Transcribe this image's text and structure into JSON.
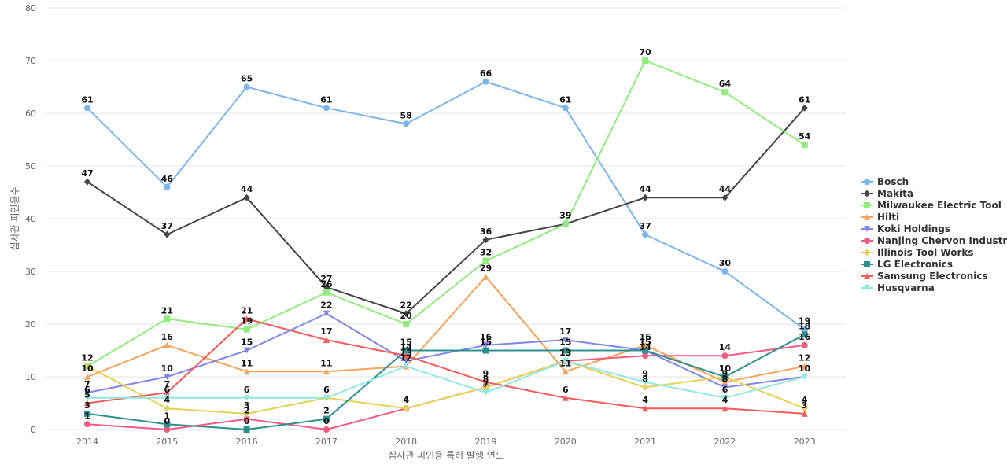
{
  "chart_data": {
    "type": "line",
    "title": "",
    "xlabel": "심사관 피인용 특허 발행 연도",
    "ylabel": "심사관 피인용수",
    "ylim": [
      0,
      80
    ],
    "yticks": [
      0,
      10,
      20,
      30,
      40,
      50,
      60,
      70,
      80
    ],
    "grid": true,
    "legend_position": "right",
    "categories": [
      "2014",
      "2015",
      "2016",
      "2017",
      "2018",
      "2019",
      "2020",
      "2021",
      "2022",
      "2023"
    ],
    "series": [
      {
        "name": "Bosch",
        "color": "#7cb5ec",
        "marker": "circle",
        "values": [
          61,
          46,
          65,
          61,
          58,
          66,
          61,
          37,
          30,
          19
        ]
      },
      {
        "name": "Makita",
        "color": "#434348",
        "marker": "diamond",
        "values": [
          47,
          37,
          44,
          27,
          22,
          36,
          39,
          44,
          44,
          61
        ]
      },
      {
        "name": "Milwaukee Electric Tool",
        "color": "#90ed7d",
        "marker": "square",
        "values": [
          12,
          21,
          19,
          26,
          20,
          32,
          39,
          70,
          64,
          54
        ]
      },
      {
        "name": "Hilti",
        "color": "#f7a35c",
        "marker": "triangle",
        "values": [
          10,
          16,
          11,
          11,
          12,
          29,
          11,
          16,
          9,
          12
        ]
      },
      {
        "name": "Koki Holdings",
        "color": "#8085e9",
        "marker": "triangle-down",
        "values": [
          7,
          10,
          15,
          22,
          13,
          16,
          17,
          15,
          8,
          10
        ]
      },
      {
        "name": "Nanjing Chervon Industry",
        "color": "#f15c80",
        "marker": "circle",
        "values": [
          1,
          0,
          2,
          0,
          4,
          8,
          13,
          14,
          14,
          16
        ]
      },
      {
        "name": "Illinois Tool Works",
        "color": "#e4d354",
        "marker": "diamond",
        "values": [
          12,
          4,
          3,
          6,
          4,
          8,
          13,
          8,
          10,
          4
        ]
      },
      {
        "name": "LG Electronics",
        "color": "#2b908f",
        "marker": "square",
        "values": [
          3,
          1,
          0,
          2,
          15,
          15,
          15,
          15,
          10,
          18
        ]
      },
      {
        "name": "Samsung Electronics",
        "color": "#f45b5b",
        "marker": "triangle",
        "values": [
          5,
          7,
          21,
          17,
          14,
          9,
          6,
          4,
          4,
          3
        ]
      },
      {
        "name": "Husqvarna",
        "color": "#91e8e1",
        "marker": "triangle-down",
        "values": [
          6,
          6,
          6,
          6,
          12,
          7,
          13,
          9,
          6,
          10
        ]
      }
    ]
  }
}
